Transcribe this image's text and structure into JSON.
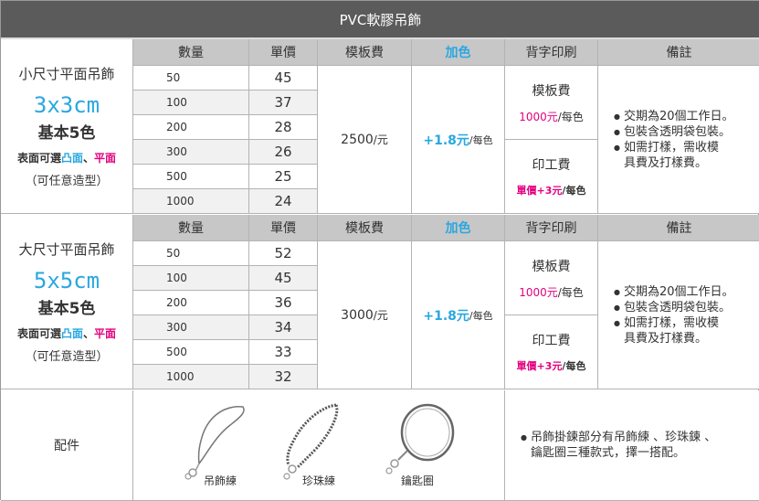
{
  "title": "PVC軟膠吊飾",
  "headers": {
    "qty": "數量",
    "unit_price": "單價",
    "mold_fee": "模板費",
    "add_color": "加色",
    "back_print": "背字印刷",
    "remarks": "備註"
  },
  "sections": [
    {
      "name": "小尺寸平面吊飾",
      "size": "3x3cm",
      "base_colors": "基本5色",
      "surface_prefix": "表面可選",
      "surface_opt1": "凸面",
      "surface_sep": "、",
      "surface_opt2": "平面",
      "note": "（可任意造型）",
      "rows": [
        {
          "qty": "50",
          "price": "45"
        },
        {
          "qty": "100",
          "price": "37"
        },
        {
          "qty": "200",
          "price": "28"
        },
        {
          "qty": "300",
          "price": "26"
        },
        {
          "qty": "500",
          "price": "25"
        },
        {
          "qty": "1000",
          "price": "24"
        }
      ],
      "mold_fee": "2500",
      "mold_unit": "/元",
      "add_color": "+1.8元",
      "add_color_unit": "/每色",
      "back_mold_label": "模板費",
      "back_mold_value": "1000元",
      "back_mold_unit": "/每色",
      "back_print_label": "印工費",
      "back_print_value": "單價+3元",
      "back_print_unit": "/每色",
      "remarks": [
        "交期為20個工作日。",
        "包裝含透明袋包裝。",
        "如需打樣，需收模",
        "具費及打樣費。"
      ]
    },
    {
      "name": "大尺寸平面吊飾",
      "size": "5x5cm",
      "base_colors": "基本5色",
      "surface_prefix": "表面可選",
      "surface_opt1": "凸面",
      "surface_sep": "、",
      "surface_opt2": "平面",
      "note": "（可任意造型）",
      "rows": [
        {
          "qty": "50",
          "price": "52"
        },
        {
          "qty": "100",
          "price": "45"
        },
        {
          "qty": "200",
          "price": "36"
        },
        {
          "qty": "300",
          "price": "34"
        },
        {
          "qty": "500",
          "price": "33"
        },
        {
          "qty": "1000",
          "price": "32"
        }
      ],
      "mold_fee": "3000",
      "mold_unit": "/元",
      "add_color": "+1.8元",
      "add_color_unit": "/每色",
      "back_mold_label": "模板費",
      "back_mold_value": "1000元",
      "back_mold_unit": "/每色",
      "back_print_label": "印工費",
      "back_print_value": "單價+3元",
      "back_print_unit": "/每色",
      "remarks": [
        "交期為20個工作日。",
        "包裝含透明袋包裝。",
        "如需打樣，需收模",
        "具費及打樣費。"
      ]
    }
  ],
  "accessories": {
    "label": "配件",
    "items": [
      {
        "name": "吊飾練",
        "icon": "lanyard-strap-icon"
      },
      {
        "name": "珍珠練",
        "icon": "bead-chain-icon"
      },
      {
        "name": "鑰匙圈",
        "icon": "key-ring-icon"
      }
    ],
    "note_line1": "吊飾掛鍊部分有吊飾練 、珍珠鍊 、",
    "note_line2": "鑰匙圈三種款式，擇一搭配。"
  }
}
